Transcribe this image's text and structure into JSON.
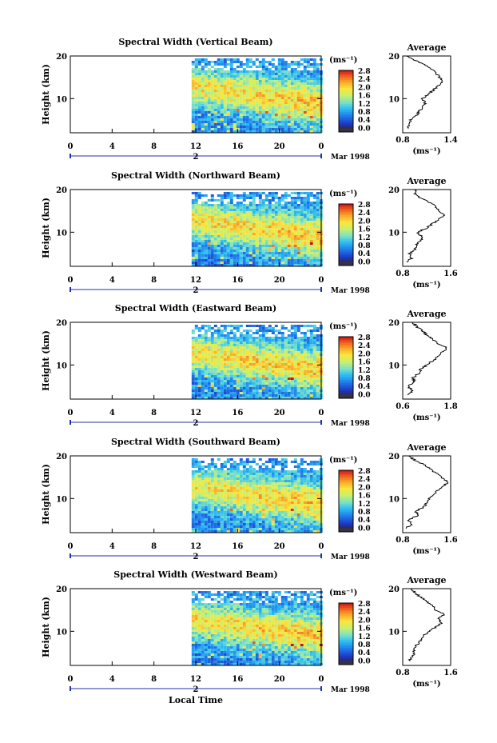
{
  "figure": {
    "xlabel": "Local Time",
    "date_label": "Mar 1998",
    "day_label": "2",
    "colorbar_unit": "(ms⁻¹)",
    "colorbar_ticks": [
      "2.8",
      "2.4",
      "2.0",
      "1.6",
      "1.2",
      "0.8",
      "0.4",
      "0.0"
    ],
    "ylabel": "Height (km)",
    "profile_title": "Average",
    "profile_unit": "(ms⁻¹)"
  },
  "chart_data": [
    {
      "type": "heatmap",
      "title": "Spectral Width (Vertical Beam)",
      "xlabel": "Local Time",
      "ylabel": "Height (km)",
      "x_ticks": [
        "0",
        "4",
        "8",
        "12",
        "16",
        "20",
        "0"
      ],
      "xlim": [
        0,
        24
      ],
      "data_start_hour": 11.6,
      "y_ticks": [
        "20",
        "10"
      ],
      "ylim": [
        2,
        20
      ],
      "colorbar": {
        "unit": "(ms⁻¹)",
        "ticks": [
          "2.8",
          "2.4",
          "2.0",
          "1.6",
          "1.2",
          "0.8",
          "0.4",
          "0.0"
        ],
        "range": [
          0,
          3.0
        ]
      },
      "profile": {
        "title": "Average",
        "xlabel": "(ms⁻¹)",
        "x_ticks": [
          "0.8",
          "1.4"
        ],
        "xlim": [
          0.8,
          1.4
        ],
        "y_ticks": [
          "20",
          "10"
        ],
        "ylim": [
          2,
          20
        ],
        "points": [
          [
            0.87,
            3
          ],
          [
            0.88,
            4
          ],
          [
            0.9,
            5
          ],
          [
            0.97,
            6
          ],
          [
            1.0,
            7
          ],
          [
            1.05,
            8
          ],
          [
            1.08,
            9
          ],
          [
            1.05,
            10
          ],
          [
            1.12,
            11
          ],
          [
            1.18,
            12
          ],
          [
            1.25,
            13
          ],
          [
            1.3,
            14
          ],
          [
            1.26,
            15
          ],
          [
            1.22,
            16
          ],
          [
            1.15,
            17
          ],
          [
            1.07,
            18
          ],
          [
            0.95,
            19
          ],
          [
            0.85,
            20
          ]
        ]
      }
    },
    {
      "type": "heatmap",
      "title": "Spectral Width (Northward Beam)",
      "xlabel": "Local Time",
      "ylabel": "Height (km)",
      "x_ticks": [
        "0",
        "4",
        "8",
        "12",
        "16",
        "20",
        "0"
      ],
      "xlim": [
        0,
        24
      ],
      "data_start_hour": 11.6,
      "y_ticks": [
        "20",
        "10"
      ],
      "ylim": [
        2,
        20
      ],
      "colorbar": {
        "unit": "(ms⁻¹)",
        "ticks": [
          "2.8",
          "2.4",
          "2.0",
          "1.6",
          "1.2",
          "0.8",
          "0.4",
          "0.0"
        ],
        "range": [
          0,
          3.0
        ]
      },
      "profile": {
        "title": "Average",
        "xlabel": "(ms⁻¹)",
        "x_ticks": [
          "0.8",
          "1.6"
        ],
        "xlim": [
          0.8,
          1.6
        ],
        "y_ticks": [
          "20",
          "10"
        ],
        "ylim": [
          2,
          20
        ],
        "points": [
          [
            0.88,
            3
          ],
          [
            0.95,
            4
          ],
          [
            0.92,
            5
          ],
          [
            1.0,
            6
          ],
          [
            1.02,
            7
          ],
          [
            1.1,
            8
          ],
          [
            1.12,
            9
          ],
          [
            1.05,
            10
          ],
          [
            1.2,
            11
          ],
          [
            1.3,
            12
          ],
          [
            1.4,
            13
          ],
          [
            1.48,
            14
          ],
          [
            1.42,
            15
          ],
          [
            1.35,
            16
          ],
          [
            1.25,
            17
          ],
          [
            1.1,
            18
          ],
          [
            1.0,
            19
          ],
          [
            1.02,
            20
          ]
        ]
      }
    },
    {
      "type": "heatmap",
      "title": "Spectral Width (Eastward Beam)",
      "xlabel": "Local Time",
      "ylabel": "Height (km)",
      "x_ticks": [
        "0",
        "4",
        "8",
        "12",
        "16",
        "20",
        "0"
      ],
      "xlim": [
        0,
        24
      ],
      "data_start_hour": 11.6,
      "y_ticks": [
        "20",
        "10"
      ],
      "ylim": [
        2,
        20
      ],
      "colorbar": {
        "unit": "(ms⁻¹)",
        "ticks": [
          "2.8",
          "2.4",
          "2.0",
          "1.6",
          "1.2",
          "0.8",
          "0.4",
          "0.0"
        ],
        "range": [
          0,
          3.0
        ]
      },
      "profile": {
        "title": "Average",
        "xlabel": "(ms⁻¹)",
        "x_ticks": [
          "0.6",
          "1.8"
        ],
        "xlim": [
          0.6,
          1.8
        ],
        "y_ticks": [
          "20",
          "10"
        ],
        "ylim": [
          2,
          20
        ],
        "points": [
          [
            0.75,
            3
          ],
          [
            0.85,
            4
          ],
          [
            0.72,
            5
          ],
          [
            0.9,
            6
          ],
          [
            0.85,
            7
          ],
          [
            1.0,
            8
          ],
          [
            1.05,
            9
          ],
          [
            1.2,
            10
          ],
          [
            1.35,
            11
          ],
          [
            1.5,
            12
          ],
          [
            1.6,
            13
          ],
          [
            1.7,
            14
          ],
          [
            1.5,
            15
          ],
          [
            1.35,
            16
          ],
          [
            1.2,
            17
          ],
          [
            1.1,
            18
          ],
          [
            0.95,
            19
          ],
          [
            0.85,
            20
          ]
        ]
      }
    },
    {
      "type": "heatmap",
      "title": "Spectral Width (Southward Beam)",
      "xlabel": "Local Time",
      "ylabel": "Height (km)",
      "x_ticks": [
        "0",
        "4",
        "8",
        "12",
        "16",
        "20",
        "0"
      ],
      "xlim": [
        0,
        24
      ],
      "data_start_hour": 11.6,
      "y_ticks": [
        "20",
        "10"
      ],
      "ylim": [
        2,
        20
      ],
      "colorbar": {
        "unit": "(ms⁻¹)",
        "ticks": [
          "2.8",
          "2.4",
          "2.0",
          "1.6",
          "1.2",
          "0.8",
          "0.4",
          "0.0"
        ],
        "range": [
          0,
          3.0
        ]
      },
      "profile": {
        "title": "Average",
        "xlabel": "(ms⁻¹)",
        "x_ticks": [
          "0.8",
          "1.6"
        ],
        "xlim": [
          0.8,
          1.6
        ],
        "y_ticks": [
          "20",
          "10"
        ],
        "ylim": [
          2,
          20
        ],
        "points": [
          [
            0.85,
            3
          ],
          [
            0.95,
            4
          ],
          [
            0.9,
            5
          ],
          [
            1.05,
            6
          ],
          [
            1.02,
            7
          ],
          [
            1.15,
            8
          ],
          [
            1.2,
            9
          ],
          [
            1.25,
            10
          ],
          [
            1.3,
            11
          ],
          [
            1.4,
            12
          ],
          [
            1.5,
            13
          ],
          [
            1.55,
            14
          ],
          [
            1.45,
            15
          ],
          [
            1.35,
            16
          ],
          [
            1.25,
            17
          ],
          [
            1.15,
            18
          ],
          [
            1.0,
            19
          ],
          [
            0.9,
            20
          ]
        ]
      }
    },
    {
      "type": "heatmap",
      "title": "Spectral Width (Westward Beam)",
      "xlabel": "Local Time",
      "ylabel": "Height (km)",
      "x_ticks": [
        "0",
        "4",
        "8",
        "12",
        "16",
        "20",
        "0"
      ],
      "xlim": [
        0,
        24
      ],
      "data_start_hour": 11.6,
      "y_ticks": [
        "20",
        "10"
      ],
      "ylim": [
        2,
        20
      ],
      "colorbar": {
        "unit": "(ms⁻¹)",
        "ticks": [
          "2.8",
          "2.4",
          "2.0",
          "1.6",
          "1.2",
          "0.8",
          "0.4",
          "0.0"
        ],
        "range": [
          0,
          3.0
        ]
      },
      "profile": {
        "title": "Average",
        "xlabel": "(ms⁻¹)",
        "x_ticks": [
          "0.8",
          "1.6"
        ],
        "xlim": [
          0.8,
          1.6
        ],
        "y_ticks": [
          "20",
          "10"
        ],
        "ylim": [
          2,
          20
        ],
        "points": [
          [
            0.9,
            3
          ],
          [
            0.95,
            4
          ],
          [
            1.0,
            5
          ],
          [
            0.98,
            6
          ],
          [
            1.05,
            7
          ],
          [
            1.1,
            8
          ],
          [
            1.15,
            9
          ],
          [
            1.25,
            10
          ],
          [
            1.35,
            11
          ],
          [
            1.45,
            12
          ],
          [
            1.4,
            13
          ],
          [
            1.5,
            14
          ],
          [
            1.35,
            15
          ],
          [
            1.3,
            16
          ],
          [
            1.2,
            17
          ],
          [
            1.1,
            18
          ],
          [
            1.0,
            19
          ],
          [
            0.95,
            20
          ]
        ]
      }
    }
  ]
}
